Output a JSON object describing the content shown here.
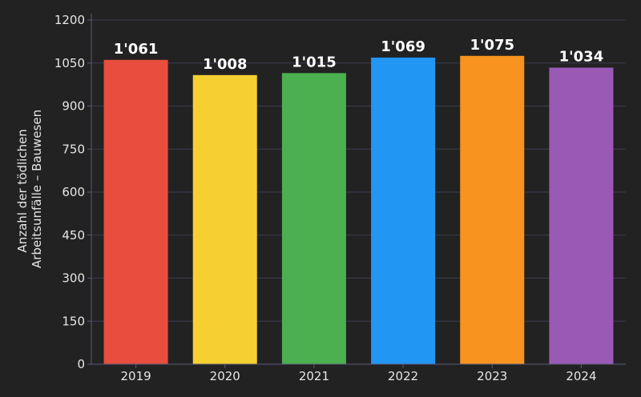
{
  "chart_data": {
    "type": "bar",
    "categories": [
      "2019",
      "2020",
      "2021",
      "2022",
      "2023",
      "2024"
    ],
    "values": [
      1061,
      1008,
      1015,
      1069,
      1075,
      1034
    ],
    "value_labels": [
      "1'061",
      "1'008",
      "1'015",
      "1'069",
      "1'075",
      "1'034"
    ],
    "colors": [
      "#e84d3d",
      "#f6d030",
      "#4caf50",
      "#2196f3",
      "#f7931e",
      "#9b59b6"
    ],
    "title": "",
    "xlabel": "",
    "ylabel_lines": [
      "Anzahl der tödlichen",
      "Arbeitsunfälle – Bauwesen"
    ],
    "ylim": [
      0,
      1200
    ],
    "yticks": [
      0,
      150,
      300,
      450,
      600,
      750,
      900,
      1050,
      1200
    ],
    "ytick_labels": [
      "0",
      "150",
      "300",
      "450",
      "600",
      "750",
      "900",
      "1050",
      "1200"
    ],
    "grid": true,
    "background": "#222222",
    "grid_color": "#3c3c52",
    "axis_color": "#5a5a78"
  }
}
